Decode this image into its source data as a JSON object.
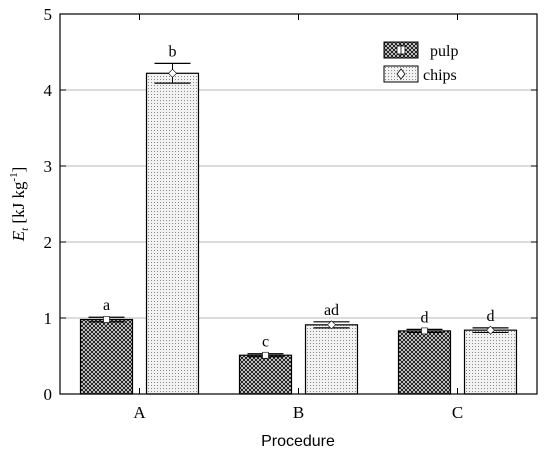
{
  "chart_data": {
    "type": "bar",
    "categories": [
      "A",
      "B",
      "C"
    ],
    "series": [
      {
        "name": "pulp",
        "values": [
          0.98,
          0.51,
          0.83
        ],
        "errors": [
          0.03,
          0.02,
          0.02
        ],
        "letters": [
          "a",
          "c",
          "d"
        ]
      },
      {
        "name": "chips",
        "values": [
          4.22,
          0.91,
          0.84
        ],
        "errors": [
          0.13,
          0.04,
          0.03
        ],
        "letters": [
          "b",
          "ad",
          "d"
        ]
      }
    ],
    "xlabel": "Procedure",
    "ylabel_main": "E",
    "ylabel_sub": "t",
    "ylabel_unit": " [kJ kg",
    "ylabel_exp": "-1",
    "ylabel_close": "]",
    "ylim": [
      0,
      5
    ],
    "yticks": [
      "0",
      "1",
      "2",
      "3",
      "4",
      "5"
    ],
    "grid": true,
    "legend_position": "top-right",
    "colors": {
      "pulp_fill": "#7a7a7a",
      "chips_fill": "#e6e6e6",
      "grid": "#b8b8b8",
      "axis": "#000000"
    }
  }
}
